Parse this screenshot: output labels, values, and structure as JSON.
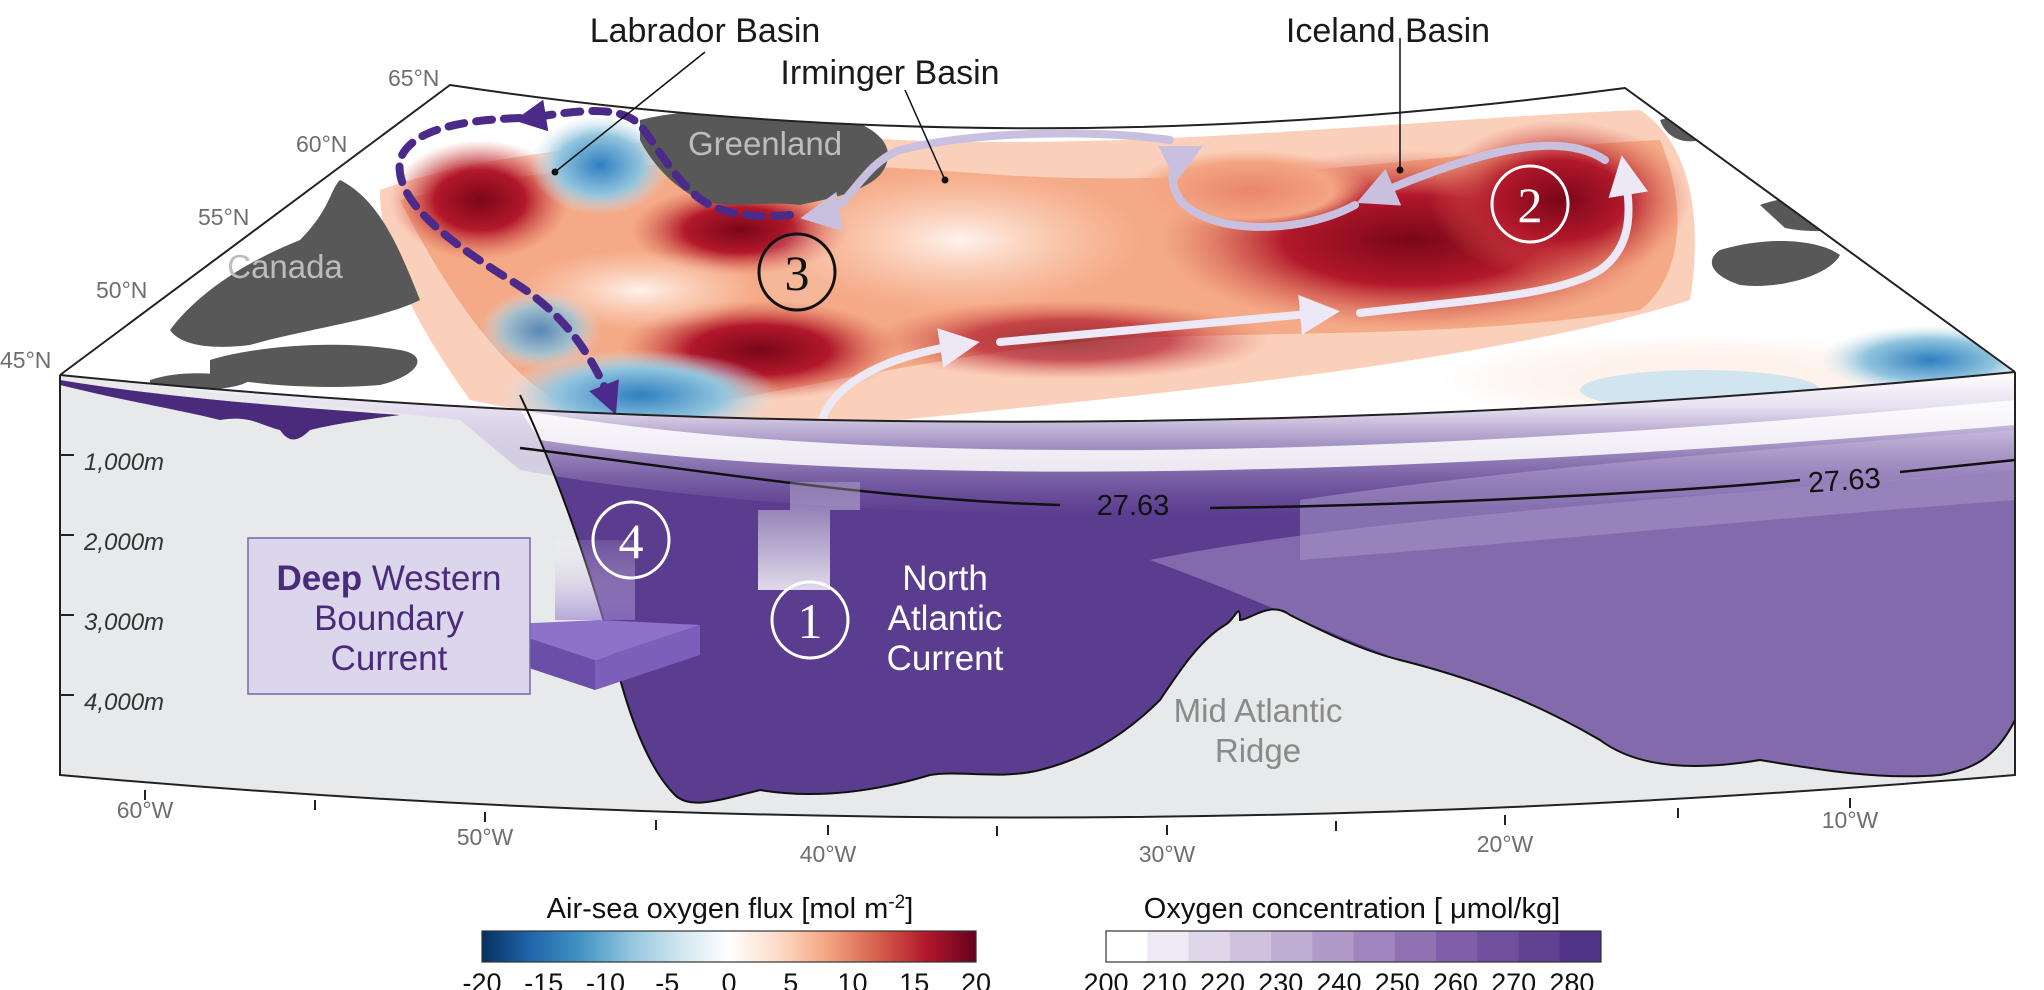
{
  "map": {
    "basins": {
      "labrador": "Labrador Basin",
      "irminger": "Irminger Basin",
      "iceland": "Iceland Basin"
    },
    "land": {
      "greenland": "Greenland",
      "canada": "Canada"
    },
    "lat_labels": [
      "65°N",
      "60°N",
      "55°N",
      "50°N",
      "45°N"
    ],
    "lon_labels": [
      "60°W",
      "50°W",
      "40°W",
      "30°W",
      "20°W",
      "10°W"
    ],
    "depth_labels": [
      "1,000m",
      "2,000m",
      "3,000m",
      "4,000m"
    ],
    "isopycnal": "27.63",
    "markers": [
      "1",
      "2",
      "3",
      "4"
    ],
    "ridge": [
      "Mid Atlantic",
      "Ridge"
    ],
    "nac": [
      "North",
      "Atlantic",
      "Current"
    ],
    "dwbc": {
      "bold": "Deep",
      "rest": "Western",
      "line2": "Boundary",
      "line3": "Current"
    }
  },
  "colorbars": {
    "flux": {
      "title": "Air-sea oxygen flux [mol m",
      "title_sup": "-2",
      "title_end": "]",
      "ticks": [
        "-20",
        "-15",
        "-10",
        "-5",
        "0",
        "5",
        "10",
        "15",
        "20"
      ],
      "min": -20,
      "max": 20,
      "colors": [
        "#053061",
        "#2166ac",
        "#4393c3",
        "#92c5de",
        "#d1e5f0",
        "#ffffff",
        "#fddbc7",
        "#f4a582",
        "#d6604d",
        "#b2182b",
        "#67001f"
      ]
    },
    "oxygen": {
      "title": "Oxygen concentration [ μmol/kg]",
      "ticks": [
        "200",
        "210",
        "220",
        "230",
        "240",
        "250",
        "260",
        "270",
        "280"
      ],
      "min": 200,
      "max": 285,
      "colors": [
        "#ffffff",
        "#efeaf4",
        "#e0d6ea",
        "#d0c2df",
        "#c0aed4",
        "#b09ac9",
        "#a086be",
        "#9072b3",
        "#805ea8",
        "#70509d",
        "#604292",
        "#503487"
      ]
    }
  }
}
